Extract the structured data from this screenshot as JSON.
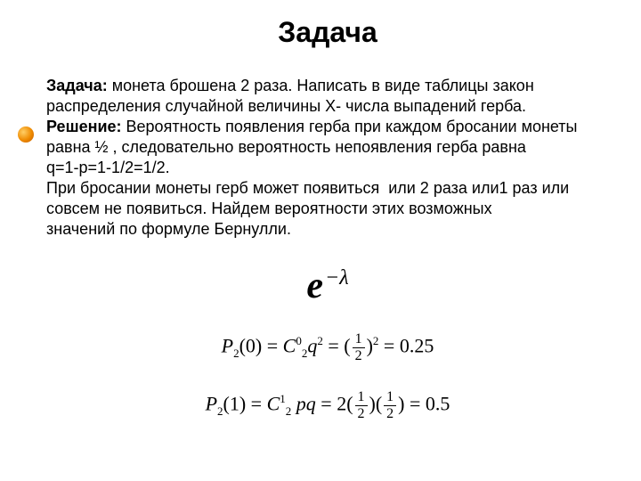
{
  "title": "Задача",
  "body": {
    "problem_label": "Задача:",
    "problem_line1": " монета брошена 2 раза. Написать в виде таблицы закон",
    "problem_line2": "распределения случайной величины Х- числа выпадений герба.",
    "solution_label": "Решение:",
    "solution_line1": " Вероятность появления герба при каждом бросании монеты",
    "solution_line2": "равна ½ , следовательно вероятность непоявления герба равна",
    "solution_line3": "q=1-p=1-1/2=1/2.",
    "para2_line1": "При бросании монеты герб может появиться  или 2 раза или1 раз или",
    "para2_line2": "совсем не появиться. Найдем вероятности этих возможных",
    "para2_line3": "значений по формуле Бернулли."
  },
  "formula1": {
    "e": "e",
    "exp": "−λ"
  },
  "formula2": {
    "lhs_P": "P",
    "lhs_sub": "2",
    "lhs_arg": "(0)",
    "eq": " = ",
    "C": "C",
    "C_sub": "2",
    "C_sup": "0",
    "q": "q",
    "q_sup": "2",
    "eq2": " = (",
    "frac_num": "1",
    "frac_den": "2",
    "close_pow": ")",
    "pow2": "2",
    "eq3": " = 0.25"
  },
  "formula3": {
    "lhs_P": "P",
    "lhs_sub": "2",
    "lhs_arg": "(1)",
    "eq": " = ",
    "C": "C",
    "C_sub": "2",
    "C_sup": "1",
    "pq": " pq",
    "eq2": " = 2(",
    "frac1_num": "1",
    "frac1_den": "2",
    "mid": ")(",
    "frac2_num": "1",
    "frac2_den": "2",
    "close": ")",
    "eq3": " = 0.5"
  },
  "colors": {
    "background": "#ffffff",
    "text": "#000000",
    "bullet_highlight": "#ffcf66",
    "bullet_mid": "#ef8a00",
    "bullet_shadow": "#c05a00"
  },
  "fonts": {
    "body": "Arial",
    "math": "Times New Roman"
  }
}
